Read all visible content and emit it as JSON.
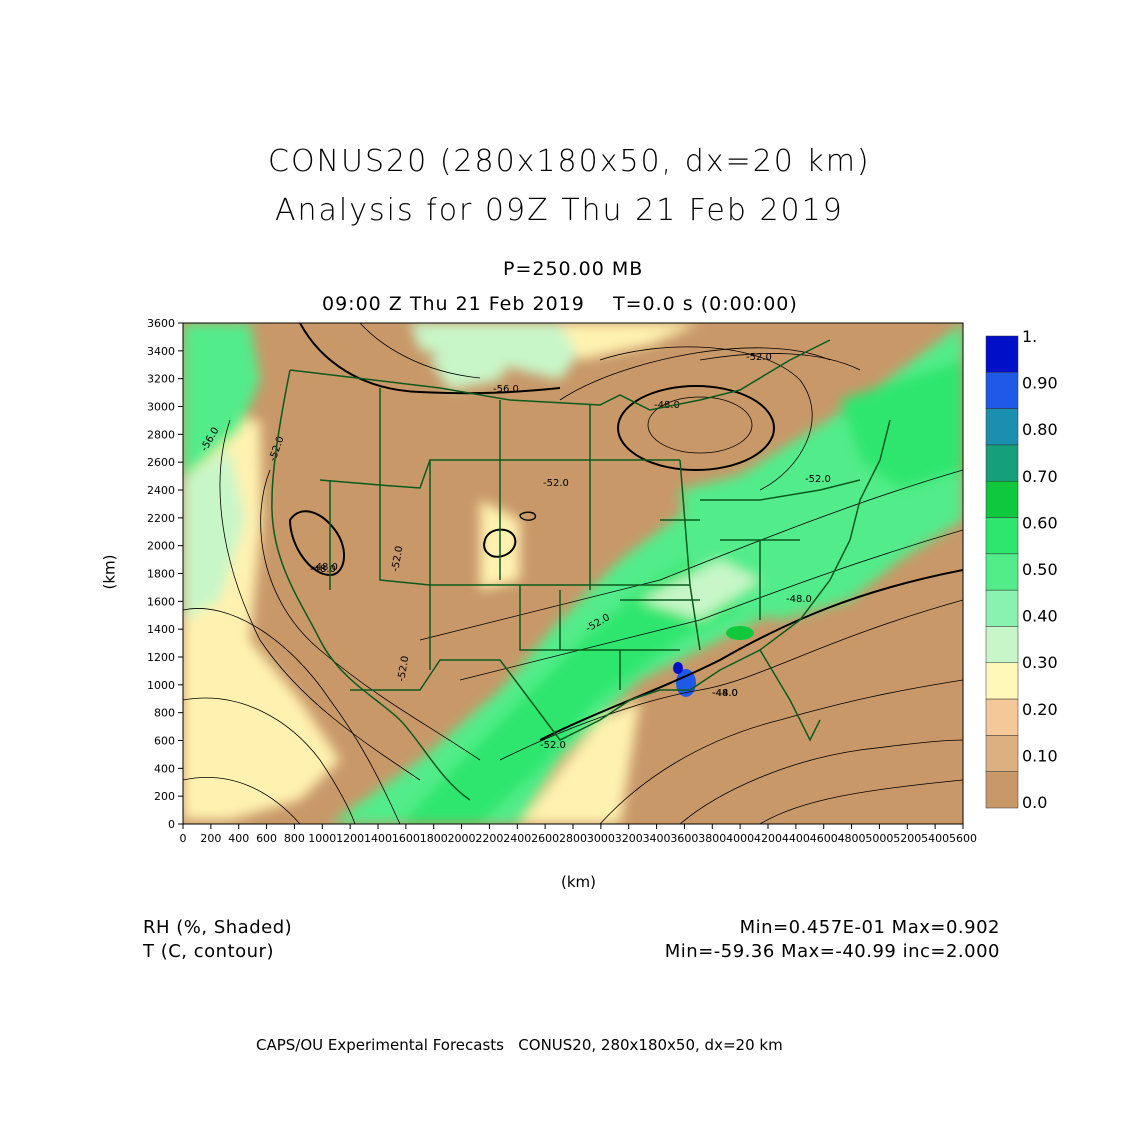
{
  "header": {
    "title_line1": "CONUS20 (280x180x50, dx=20 km)",
    "title_line2": "Analysis for 09Z Thu 21 Feb 2019",
    "pressure_level": "P=250.00 MB",
    "valid_time": "09:00 Z Thu 21 Feb 2019    T=0.0 s (0:00:00)"
  },
  "axes": {
    "x_label": "(km)",
    "y_label": "(km)",
    "x_ticks": [
      "0",
      "200",
      "400",
      "600",
      "800",
      "1000",
      "1200",
      "1400",
      "1600",
      "1800",
      "2000",
      "2200",
      "2400",
      "2600",
      "2800",
      "3000",
      "3200",
      "3400",
      "3600",
      "3800",
      "4000",
      "4200",
      "4400",
      "4600",
      "4800",
      "5000",
      "5200",
      "5400",
      "5600"
    ],
    "y_ticks": [
      "0",
      "200",
      "400",
      "600",
      "800",
      "1000",
      "1200",
      "1400",
      "1600",
      "1800",
      "2000",
      "2200",
      "2400",
      "2600",
      "2800",
      "3000",
      "3200",
      "3400",
      "3600"
    ],
    "x_range": [
      0,
      5600
    ],
    "y_range": [
      0,
      3600
    ]
  },
  "colorbar": {
    "labels": [
      "1.",
      "0.90",
      "0.80",
      "0.70",
      "0.60",
      "0.50",
      "0.40",
      "0.30",
      "0.20",
      "0.10",
      "0.0"
    ],
    "colors": [
      "#0010c8",
      "#1e5ae6",
      "#1a8fb0",
      "#16a07a",
      "#10c83c",
      "#2ee66e",
      "#52ec8a",
      "#8af2b0",
      "#c8f6c8",
      "#fff8b8",
      "#f4c898",
      "#dcb080",
      "#c89868"
    ]
  },
  "contour_labels": [
    "-56.0",
    "-52.0",
    "-48.0",
    "-52.0",
    "-56.0",
    "-52.0",
    "-52.0",
    "-48.0",
    "-52.0",
    "-48.0",
    "-52.0",
    "-52.0",
    "-52.0",
    "-48.0",
    "-44.0",
    "-48.0"
  ],
  "footer": {
    "field1_name": "RH (%, Shaded)",
    "field1_stats": "Min=0.457E-01 Max=0.902",
    "field2_name": "T (C, contour)",
    "field2_stats": "Min=-59.36 Max=-40.99 inc=2.000",
    "credit": "CAPS/OU Experimental Forecasts   CONUS20, 280x180x50, dx=20 km"
  },
  "colors": {
    "land_dry": "#c89868",
    "border": "#0a5a1e",
    "contour": "#000000"
  }
}
